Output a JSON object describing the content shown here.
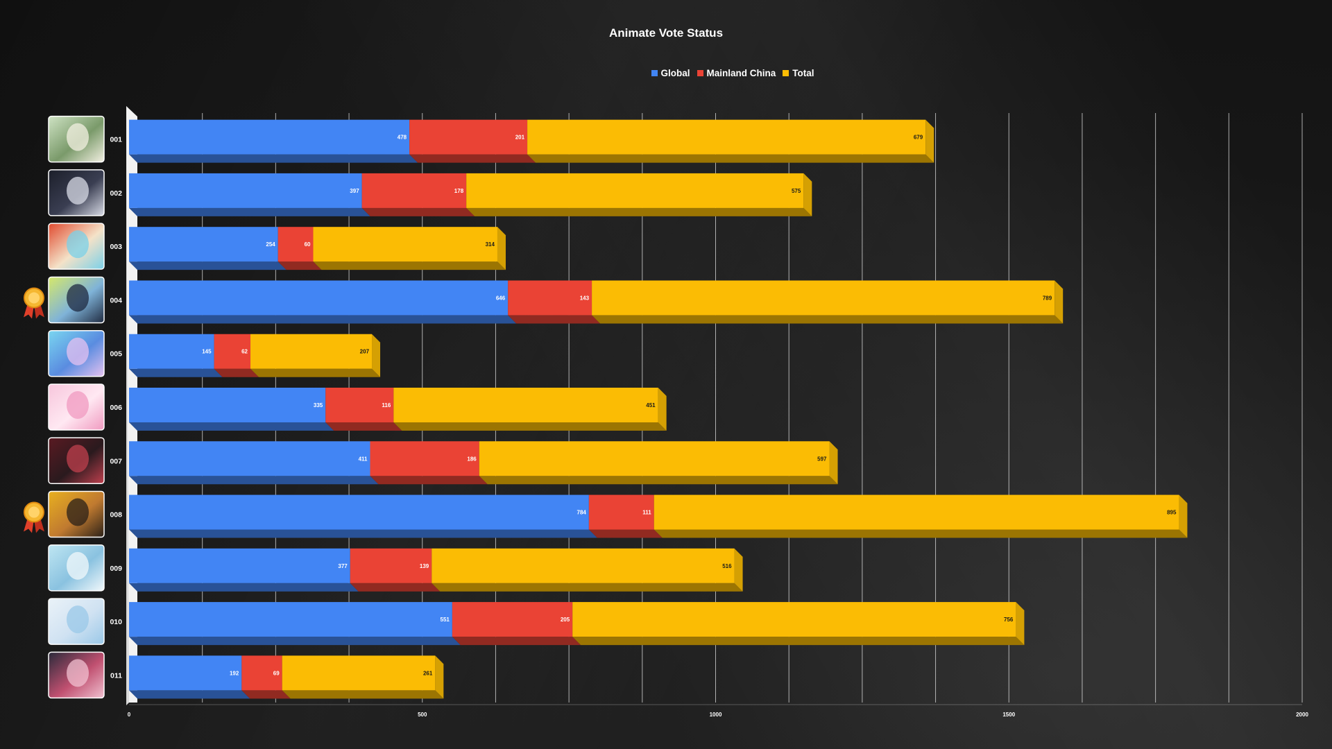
{
  "chart_data": {
    "type": "bar",
    "orientation": "horizontal",
    "stacked": true,
    "title": "Animate Vote Status",
    "legend_position": "top-center",
    "categories": [
      "001",
      "002",
      "003",
      "004",
      "005",
      "006",
      "007",
      "008",
      "009",
      "010",
      "011"
    ],
    "series": [
      {
        "name": "Global",
        "color": "#4285f4",
        "values": [
          478,
          397,
          254,
          646,
          145,
          335,
          411,
          784,
          377,
          551,
          192
        ]
      },
      {
        "name": "Mainland China",
        "color": "#ea4335",
        "values": [
          201,
          178,
          60,
          143,
          62,
          116,
          186,
          111,
          139,
          205,
          69
        ]
      },
      {
        "name": "Total",
        "color": "#fbbc04",
        "values": [
          679,
          575,
          314,
          789,
          207,
          451,
          597,
          895,
          516,
          756,
          261
        ]
      }
    ],
    "x_ticks": [
      "0",
      "500",
      "1000",
      "1500",
      "2000"
    ],
    "xlim": [
      0,
      2000
    ],
    "grid": true,
    "awards": [
      "004",
      "008"
    ]
  }
}
